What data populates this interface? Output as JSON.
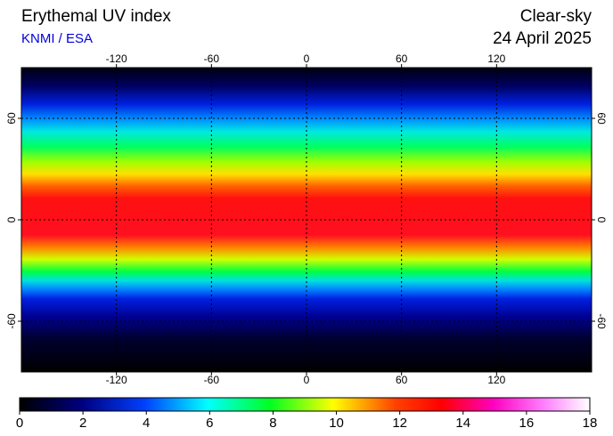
{
  "header": {
    "title": "Erythemal UV index",
    "source": "KNMI / ESA",
    "condition": "Clear-sky",
    "date": "24 April 2025"
  },
  "map": {
    "lon_range": [
      -180,
      180
    ],
    "lat_range": [
      -90,
      90
    ],
    "lon_ticks": [
      -120,
      -60,
      0,
      60,
      120
    ],
    "lat_ticks": [
      60,
      0,
      -60
    ]
  },
  "colorbar": {
    "range": [
      0,
      18
    ],
    "ticks": [
      0,
      2,
      4,
      6,
      8,
      10,
      12,
      14,
      16,
      18
    ]
  }
}
